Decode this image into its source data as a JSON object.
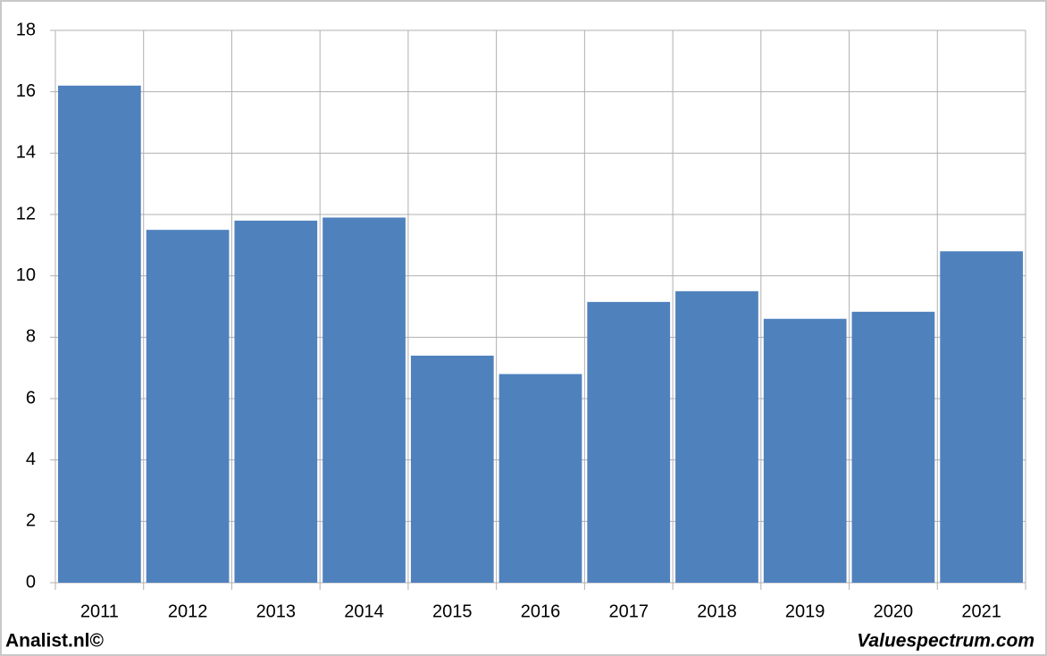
{
  "chart_data": {
    "type": "bar",
    "categories": [
      "2011",
      "2012",
      "2013",
      "2014",
      "2015",
      "2016",
      "2017",
      "2018",
      "2019",
      "2020",
      "2021"
    ],
    "values": [
      16.2,
      11.5,
      11.8,
      11.9,
      7.4,
      6.8,
      9.15,
      9.5,
      8.6,
      8.83,
      10.8
    ],
    "color": "#4f81bd",
    "ylim": [
      0,
      18
    ],
    "yticks": [
      0,
      2,
      4,
      6,
      8,
      10,
      12,
      14,
      16,
      18
    ],
    "grid": true
  },
  "footer": {
    "left": "Analist.nl©",
    "right": "Valuespectrum.com"
  }
}
